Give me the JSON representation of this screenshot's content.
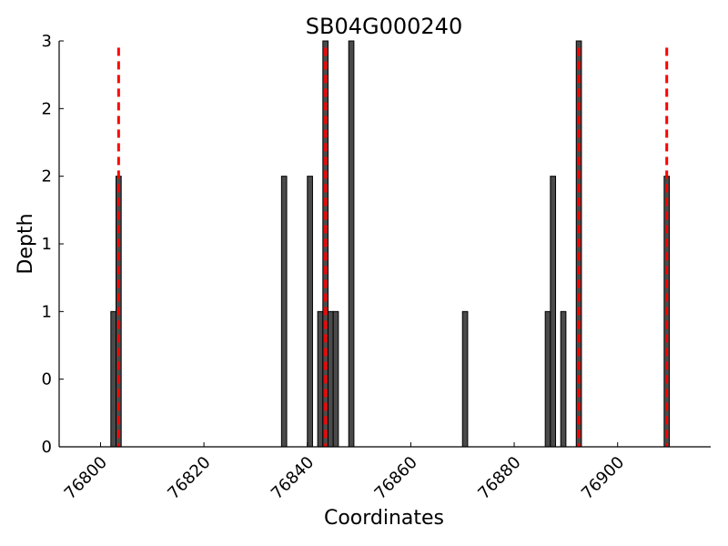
{
  "chart_data": {
    "type": "bar",
    "title": "SB04G000240",
    "xlabel": "Coordinates",
    "ylabel": "Depth",
    "xlim": [
      76792,
      76918
    ],
    "ylim": [
      0,
      3
    ],
    "x_ticks": [
      76800,
      76820,
      76840,
      76860,
      76880,
      76900
    ],
    "y_ticks": [
      0,
      0.5,
      1,
      1.5,
      2,
      2.5,
      3
    ],
    "y_tick_labels": [
      "0",
      "0",
      "1",
      "1",
      "2",
      "2",
      "3"
    ],
    "bars": {
      "x": [
        76802,
        76803,
        76835,
        76840,
        76842,
        76843,
        76844,
        76845,
        76848,
        76870,
        76886,
        76887,
        76889,
        76892,
        76909
      ],
      "values": [
        1,
        2,
        2,
        2,
        1,
        3,
        1,
        1,
        3,
        1,
        1,
        2,
        1,
        3,
        2
      ],
      "bar_width": 1,
      "color": "#4a4a4a",
      "edge_color": "#000000"
    },
    "reference_lines": {
      "x": [
        76803.5,
        76843.5,
        76892.5,
        76909.5
      ],
      "color": "#ff0000",
      "style": "dashed",
      "y_top": 2.95
    },
    "grid": false,
    "legend": "none"
  }
}
